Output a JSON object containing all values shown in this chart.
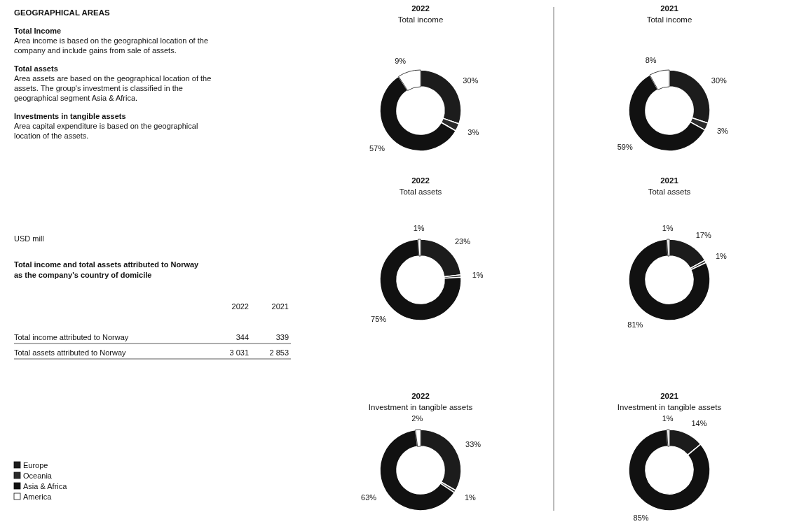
{
  "chart_data": [
    {
      "type": "other",
      "title": "GEOGRAPHICAL AREAS",
      "annotations": [
        "Total Income",
        "Area income is based on the geographical location of the company and include gains from sale of assets.",
        "Total assets",
        "Area assets are based on the geographical location of the assets. The group's investment is classified in the geographical segment Asia & Africa.",
        "Investments in tangible assets",
        "Area capital expenditure is based on the geographical location of the assets."
      ]
    },
    {
      "type": "other",
      "subtitle": "USD mill",
      "title": "Total income and total assets attributed to Norway as the company's country of domicile",
      "categories": [
        "Total income attributed to Norway",
        "Total assets attributed to Norway"
      ],
      "data_labels": true,
      "series": [
        {
          "name": "2022",
          "values": [
            344,
            3031
          ]
        },
        {
          "name": "2021",
          "values": [
            339,
            2853
          ]
        }
      ]
    },
    {
      "type": "donut",
      "title": "2022",
      "subtitle": "Total income",
      "categories": [
        "Europe",
        "Oceania",
        "Asia & Africa",
        "America"
      ],
      "values": [
        30,
        3,
        57,
        9
      ],
      "value_labels": [
        "30%",
        "3%",
        "57%",
        "9%"
      ],
      "colors": [
        "#1c1c1c",
        "#2a2a2a",
        "#111111",
        "#ffffff"
      ],
      "legend": "bottom left"
    },
    {
      "type": "donut",
      "title": "2021",
      "subtitle": "Total income",
      "categories": [
        null,
        null,
        null,
        null
      ],
      "values": [
        30,
        3,
        59,
        8
      ],
      "value_labels": [
        "30%",
        "3%",
        "59%",
        "8%"
      ],
      "colors": [
        "#1c1c1c",
        "#2a2a2a",
        "#111111",
        "#ffffff"
      ]
    },
    {
      "type": "donut",
      "title": "2022",
      "subtitle": "Total assets",
      "categories": [
        null,
        null,
        null,
        null
      ],
      "values": [
        23,
        1,
        75,
        1
      ],
      "value_labels": [
        "23%",
        "1%",
        "75%",
        "1%"
      ],
      "colors": [
        "#1c1c1c",
        "#2a2a2a",
        "#111111",
        "#ffffff"
      ]
    },
    {
      "type": "donut",
      "title": "2021",
      "subtitle": "Total assets",
      "categories": [
        null,
        null,
        null,
        null
      ],
      "values": [
        17,
        1,
        81,
        1
      ],
      "value_labels": [
        "17%",
        "1%",
        "81%",
        "1%"
      ],
      "colors": [
        "#1c1c1c",
        "#2a2a2a",
        "#111111",
        "#ffffff"
      ]
    },
    {
      "type": "donut",
      "title": "2022",
      "subtitle": "Investment in tangible assets",
      "categories": [
        null,
        null,
        null,
        null
      ],
      "values": [
        33,
        1,
        63,
        2
      ],
      "value_labels": [
        "33%",
        "1%",
        "63%",
        "2%"
      ],
      "colors": [
        "#1c1c1c",
        "#2a2a2a",
        "#111111",
        "#ffffff"
      ]
    },
    {
      "type": "donut",
      "title": "2021",
      "subtitle": "Investment in tangible assets",
      "categories": [
        null,
        null,
        null,
        null
      ],
      "values": [
        14,
        0,
        85,
        1
      ],
      "value_labels": [
        "14%",
        null,
        "85%",
        "1%"
      ],
      "colors": [
        "#1c1c1c",
        "#2a2a2a",
        "#111111",
        "#ffffff"
      ]
    }
  ]
}
